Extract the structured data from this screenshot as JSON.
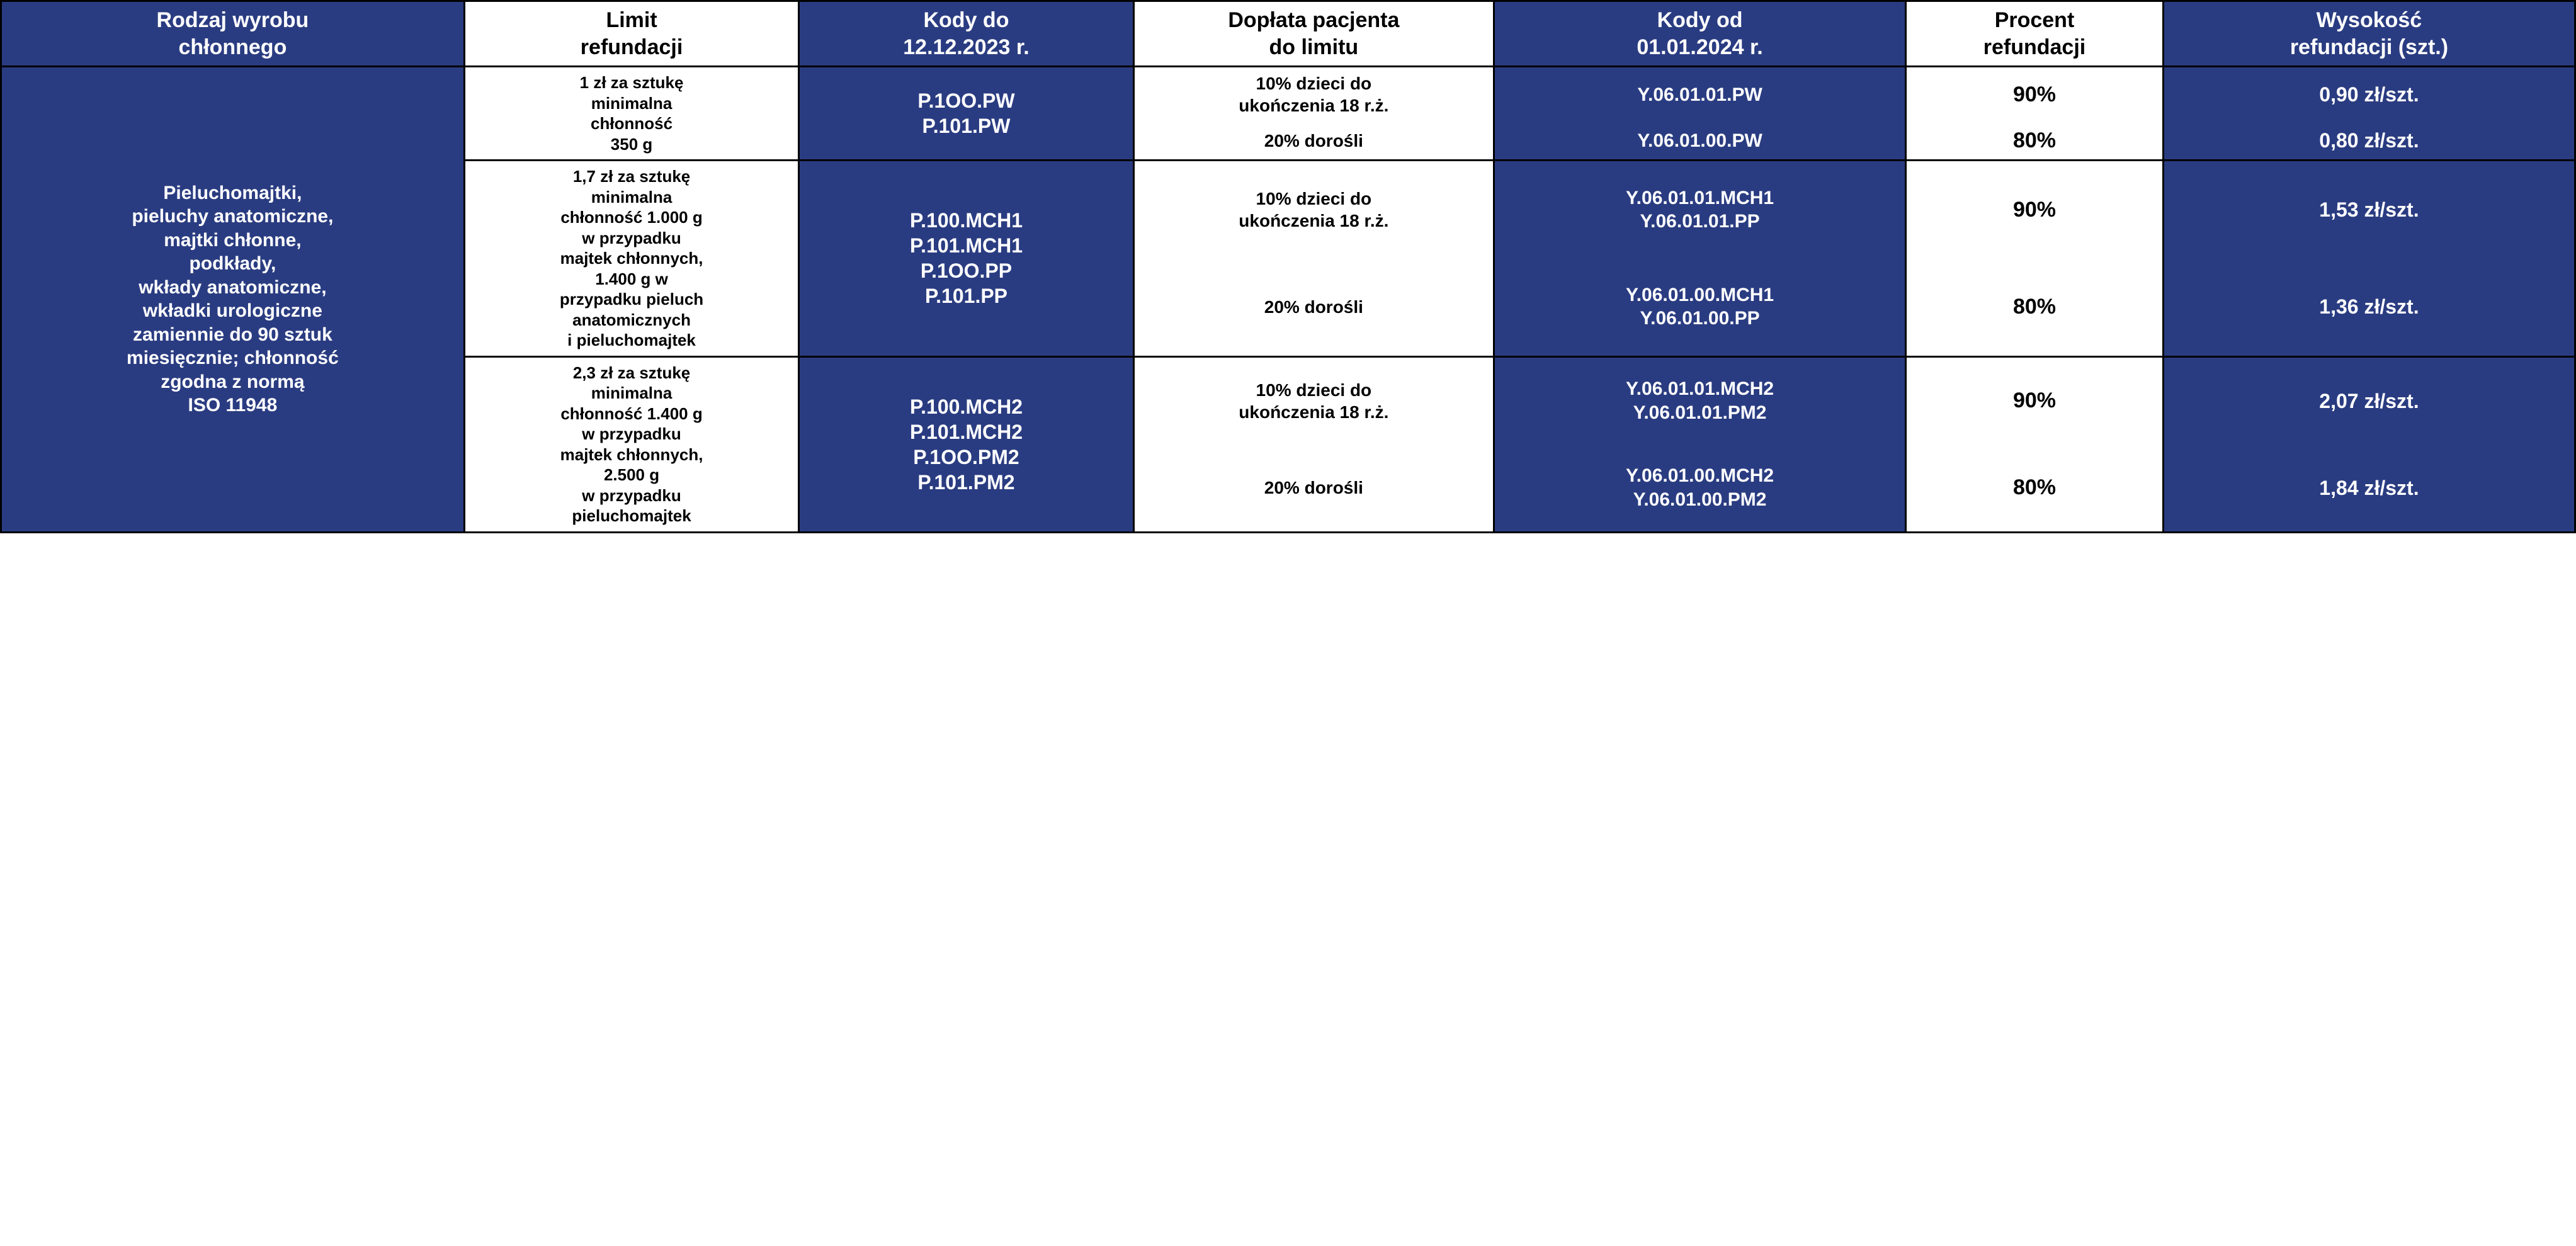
{
  "colors": {
    "blue": "#2a3c81",
    "white": "#ffffff",
    "black": "#000000",
    "dash": "#4fc3e8"
  },
  "headers": {
    "c1": "Rodzaj wyrobu\nchłonnego",
    "c2": "Limit\nrefundacji",
    "c3": "Kody do\n12.12.2023 r.",
    "c4": "Dopłata pacjenta\ndo limitu",
    "c5": "Kody od\n01.01.2024 r.",
    "c6": "Procent\nrefundacji",
    "c7": "Wysokość\nrefundacji (szt.)"
  },
  "productDescription": "Pieluchomajtki,\npieluchy anatomiczne,\nmajtki chłonne,\npodkłady,\nwkłady anatomiczne,\nwkładki urologiczne\nzamiennie do 90 sztuk\nmiesięcznie; chłonność\nzgodna z normą\nISO 11948",
  "groups": [
    {
      "limit": "1 zł za sztukę\nminimalna\nchłonność\n350 g",
      "oldCodes": "P.1OO.PW\nP.101.PW",
      "rows": [
        {
          "doplat": "10% dzieci do\nukończenia 18 r.ż.",
          "newCode": "Y.06.01.01.PW",
          "percent": "90%",
          "amount": "0,90 zł/szt."
        },
        {
          "doplat": "20% dorośli",
          "newCode": "Y.06.01.00.PW",
          "percent": "80%",
          "amount": "0,80 zł/szt."
        }
      ]
    },
    {
      "limit": "1,7 zł za sztukę\nminimalna\nchłonność 1.000 g\nw przypadku\nmajtek chłonnych,\n1.400 g w\nprzypadku pieluch\nanatomicznych\ni pieluchomajtek",
      "oldCodes": "P.100.MCH1\nP.101.MCH1\nP.1OO.PP\nP.101.PP",
      "rows": [
        {
          "doplat": "10% dzieci do\nukończenia 18 r.ż.",
          "newCode": "Y.06.01.01.MCH1\nY.06.01.01.PP",
          "percent": "90%",
          "amount": "1,53 zł/szt."
        },
        {
          "doplat": "20% dorośli",
          "newCode": "Y.06.01.00.MCH1\nY.06.01.00.PP",
          "percent": "80%",
          "amount": "1,36 zł/szt."
        }
      ]
    },
    {
      "limit": "2,3 zł za sztukę\nminimalna\nchłonność 1.400 g\nw przypadku\nmajtek chłonnych,\n2.500 g\nw przypadku\npieluchomajtek",
      "oldCodes": "P.100.MCH2\nP.101.MCH2\nP.1OO.PM2\nP.101.PM2",
      "rows": [
        {
          "doplat": "10% dzieci do\nukończenia 18 r.ż.",
          "newCode": "Y.06.01.01.MCH2\nY.06.01.01.PM2",
          "percent": "90%",
          "amount": "2,07 zł/szt."
        },
        {
          "doplat": "20% dorośli",
          "newCode": "Y.06.01.00.MCH2\nY.06.01.00.PM2",
          "percent": "80%",
          "amount": "1,84 zł/szt."
        }
      ]
    }
  ]
}
